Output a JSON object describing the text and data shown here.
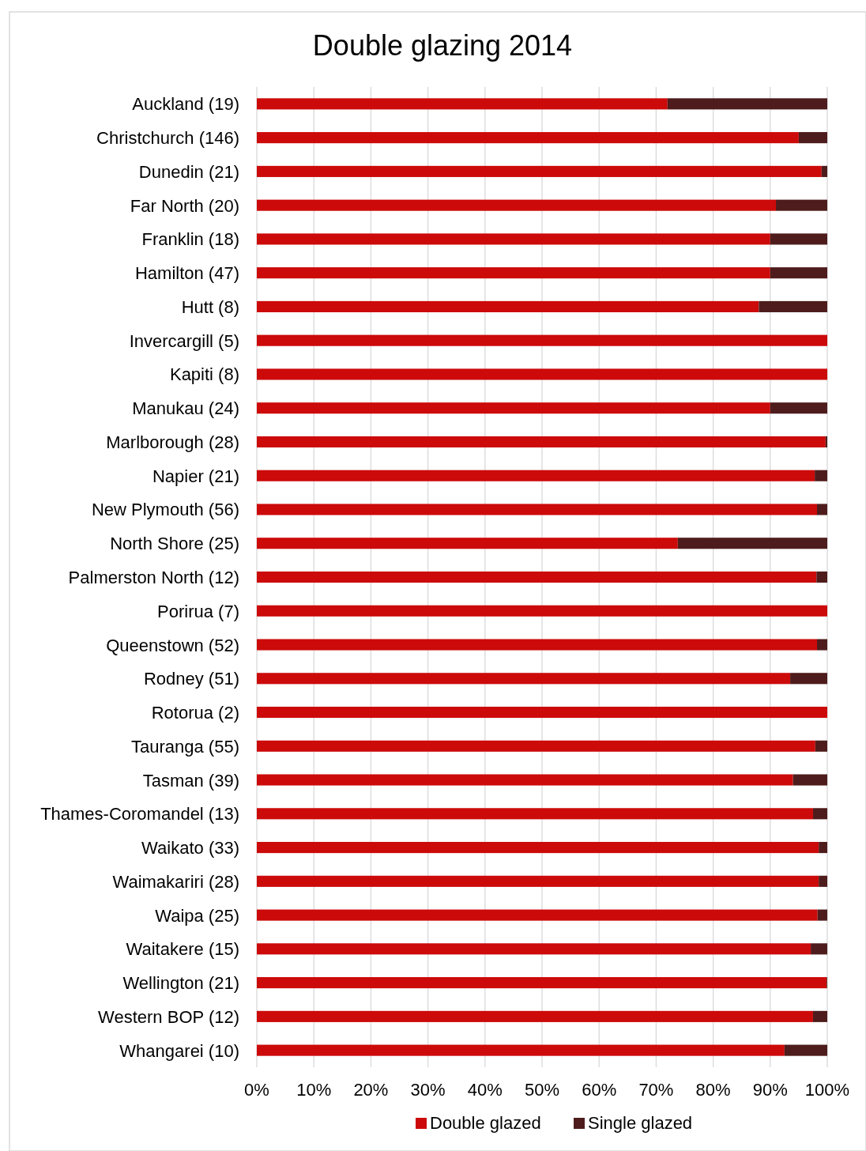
{
  "chart_data": {
    "type": "bar",
    "title": "Double glazing 2014",
    "orientation": "horizontal",
    "stacked": true,
    "categories": [
      "Auckland (19)",
      "Christchurch (146)",
      "Dunedin (21)",
      "Far North (20)",
      "Franklin (18)",
      "Hamilton (47)",
      "Hutt (8)",
      "Invercargill (5)",
      "Kapiti (8)",
      "Manukau (24)",
      "Marlborough (28)",
      "Napier (21)",
      "New Plymouth (56)",
      "North Shore (25)",
      "Palmerston North (12)",
      "Porirua (7)",
      "Queenstown (52)",
      "Rodney (51)",
      "Rotorua (2)",
      "Tauranga (55)",
      "Tasman (39)",
      "Thames-Coromandel (13)",
      "Waikato (33)",
      "Waimakariri (28)",
      "Waipa (25)",
      "Waitakere (15)",
      "Wellington (21)",
      "Western BOP (12)",
      "Whangarei (10)"
    ],
    "series": [
      {
        "name": "Double glazed",
        "color": "#cc0a0a",
        "values": [
          72,
          95,
          99,
          91,
          90,
          90,
          88,
          100,
          100,
          90,
          99.7,
          97.8,
          98.2,
          73.8,
          98.1,
          100,
          98.2,
          93.5,
          100,
          97.9,
          94,
          97.5,
          98.5,
          98.5,
          98.3,
          97.1,
          99.9,
          97.5,
          92.5
        ]
      },
      {
        "name": "Single glazed",
        "color": "#4e1c1c",
        "values": [
          28,
          5,
          1,
          9,
          10,
          10,
          12,
          0,
          0,
          10,
          0.3,
          2.2,
          1.8,
          26.2,
          1.9,
          0,
          1.8,
          6.5,
          0,
          2.1,
          6,
          2.5,
          1.5,
          1.5,
          1.7,
          2.9,
          0.1,
          2.5,
          7.5
        ]
      }
    ],
    "xlim": [
      0,
      100
    ],
    "xticks": [
      {
        "value": 0,
        "label": "0%"
      },
      {
        "value": 10,
        "label": "10%"
      },
      {
        "value": 20,
        "label": "20%"
      },
      {
        "value": 30,
        "label": "30%"
      },
      {
        "value": 40,
        "label": "40%"
      },
      {
        "value": 50,
        "label": "50%"
      },
      {
        "value": 60,
        "label": "60%"
      },
      {
        "value": 70,
        "label": "70%"
      },
      {
        "value": 80,
        "label": "80%"
      },
      {
        "value": 90,
        "label": "90%"
      },
      {
        "value": 100,
        "label": "100%"
      }
    ],
    "grid": "x",
    "legend": "bottom"
  }
}
